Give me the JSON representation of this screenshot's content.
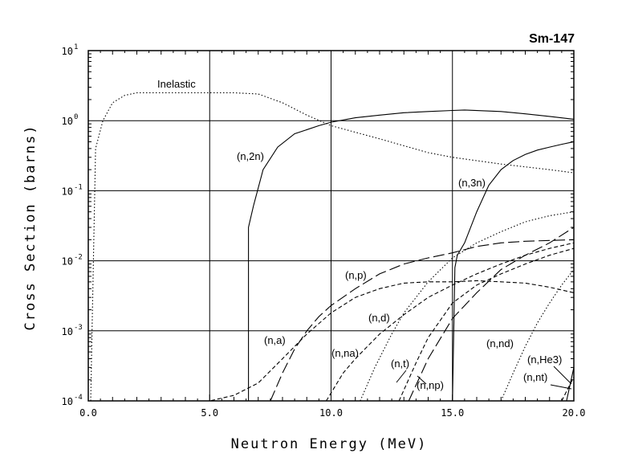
{
  "chart_data": {
    "type": "line",
    "title": "Sm-147",
    "xlabel": "Neutron Energy (MeV)",
    "ylabel": "Cross Section (barns)",
    "xlim": [
      0,
      20
    ],
    "ylim": [
      0.0001,
      10
    ],
    "y_scale": "log",
    "grid": true,
    "x_ticks": [
      "0.0",
      "5.0",
      "10.0",
      "15.0",
      "20.0"
    ],
    "y_ticks": [
      {
        "base": "10",
        "exp": "-4"
      },
      {
        "base": "10",
        "exp": "-3"
      },
      {
        "base": "10",
        "exp": "-2"
      },
      {
        "base": "10",
        "exp": "-1"
      },
      {
        "base": "10",
        "exp": "0"
      },
      {
        "base": "10",
        "exp": "1"
      }
    ],
    "series": [
      {
        "name": "Inelastic",
        "style": "dotted",
        "x": [
          0.1,
          0.3,
          0.6,
          1.0,
          1.5,
          2.0,
          4.0,
          6.0,
          7.0,
          8.0,
          9.0,
          10.0,
          12.0,
          14.0,
          15.0,
          17.0,
          19.0,
          20.0
        ],
        "y": [
          0.0001,
          0.4,
          1.0,
          1.8,
          2.3,
          2.5,
          2.5,
          2.5,
          2.4,
          1.8,
          1.2,
          0.85,
          0.55,
          0.35,
          0.3,
          0.24,
          0.2,
          0.18
        ]
      },
      {
        "name": "(n,2n)",
        "style": "solid",
        "x": [
          6.6,
          6.6,
          6.8,
          7.2,
          7.8,
          8.5,
          9.5,
          10.0,
          11.0,
          12.0,
          13.0,
          14.0,
          15.0,
          15.5,
          17.0,
          18.0,
          19.0,
          20.0
        ],
        "y": [
          0.0001,
          0.03,
          0.06,
          0.2,
          0.42,
          0.65,
          0.85,
          0.95,
          1.1,
          1.2,
          1.3,
          1.35,
          1.4,
          1.42,
          1.35,
          1.25,
          1.15,
          1.05
        ]
      },
      {
        "name": "(n,3n)",
        "style": "solid",
        "x": [
          15.0,
          15.1,
          15.2,
          15.5,
          16.0,
          16.5,
          17.0,
          17.5,
          18.0,
          18.5,
          19.0,
          19.5,
          20.0
        ],
        "y": [
          0.0001,
          0.008,
          0.012,
          0.018,
          0.05,
          0.12,
          0.2,
          0.27,
          0.33,
          0.38,
          0.42,
          0.46,
          0.5
        ]
      },
      {
        "name": "(n,p)",
        "style": "long-dash",
        "x": [
          7.5,
          8.0,
          8.5,
          9.0,
          9.5,
          10.0,
          11.0,
          12.0,
          13.0,
          14.0,
          15.0,
          16.0,
          17.0,
          18.0,
          19.0,
          20.0
        ],
        "y": [
          0.0001,
          0.00025,
          0.00055,
          0.001,
          0.0016,
          0.0023,
          0.004,
          0.0065,
          0.009,
          0.011,
          0.013,
          0.016,
          0.018,
          0.019,
          0.0195,
          0.02
        ]
      },
      {
        "name": "(n,a)",
        "style": "dashed",
        "x": [
          4.0,
          5.0,
          6.0,
          7.0,
          8.0,
          9.0,
          10.0,
          11.0,
          12.0,
          13.0,
          14.0,
          15.0,
          16.0,
          17.0,
          18.0,
          19.0,
          20.0
        ],
        "y": [
          0.0001,
          0.0001,
          0.00012,
          0.00018,
          0.0004,
          0.0009,
          0.0018,
          0.003,
          0.004,
          0.0048,
          0.005,
          0.005,
          0.0052,
          0.005,
          0.0048,
          0.0042,
          0.0035
        ]
      },
      {
        "name": "(n,na)",
        "style": "dashed",
        "x": [
          9.8,
          10.5,
          11.0,
          12.0,
          13.0,
          14.0,
          15.0,
          16.0,
          17.0,
          18.0,
          19.0,
          20.0
        ],
        "y": [
          0.0001,
          0.00025,
          0.0004,
          0.0009,
          0.0017,
          0.003,
          0.0045,
          0.0065,
          0.009,
          0.012,
          0.015,
          0.018
        ]
      },
      {
        "name": "(n,d)",
        "style": "dotted",
        "x": [
          11.2,
          11.8,
          12.5,
          13.0,
          14.0,
          15.0,
          16.0,
          17.0,
          18.0,
          19.0,
          20.0
        ],
        "y": [
          0.0001,
          0.0003,
          0.0009,
          0.0018,
          0.005,
          0.011,
          0.018,
          0.026,
          0.036,
          0.044,
          0.05
        ]
      },
      {
        "name": "(n,t)",
        "style": "dashed",
        "x": [
          12.8,
          13.5,
          14.0,
          15.0,
          16.0,
          17.0,
          18.0,
          19.0,
          20.0
        ],
        "y": [
          0.0001,
          0.00035,
          0.0008,
          0.0025,
          0.0045,
          0.0065,
          0.009,
          0.012,
          0.015
        ]
      },
      {
        "name": "(n,np)",
        "style": "long-dash",
        "x": [
          13.2,
          14.0,
          15.0,
          16.0,
          17.0,
          18.0,
          19.0,
          20.0
        ],
        "y": [
          0.0001,
          0.0004,
          0.0015,
          0.0035,
          0.0075,
          0.012,
          0.018,
          0.03
        ]
      },
      {
        "name": "(n,nd)",
        "style": "dotted",
        "x": [
          17.0,
          17.5,
          18.0,
          18.5,
          19.0,
          19.5,
          20.0
        ],
        "y": [
          0.0001,
          0.00025,
          0.0006,
          0.0013,
          0.0025,
          0.0045,
          0.0075
        ]
      },
      {
        "name": "(n,He3)",
        "style": "dashed",
        "x": [
          19.5,
          20.0
        ],
        "y": [
          0.0001,
          0.00022
        ]
      },
      {
        "name": "(n,nt)",
        "style": "solid",
        "x": [
          19.7,
          20.0
        ],
        "y": [
          0.0001,
          0.0003
        ]
      }
    ],
    "labels": {
      "inelastic": "Inelastic",
      "n2n": "(n,2n)",
      "n3n": "(n,3n)",
      "np": "(n,p)",
      "na": "(n,a)",
      "nd": "(n,d)",
      "nna": "(n,na)",
      "nt": "(n,t)",
      "nnp": "(n,np)",
      "nnd": "(n,nd)",
      "nhe3": "(n,He3)",
      "nnt": "(n,nt)"
    }
  }
}
